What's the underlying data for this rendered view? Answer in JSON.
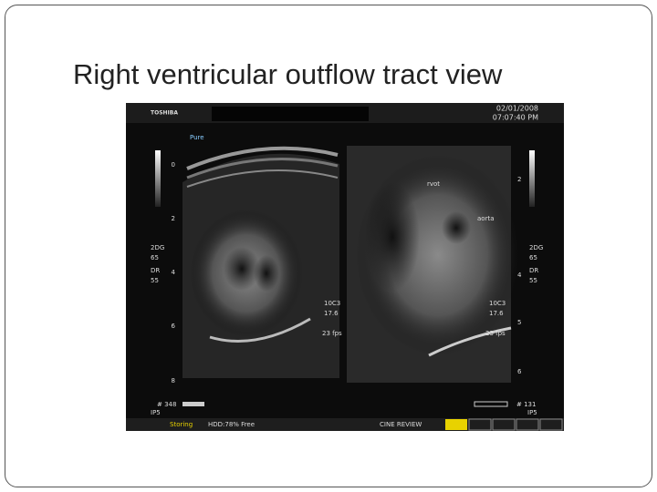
{
  "title": "Right ventricular outflow tract view",
  "ultrasound": {
    "header": {
      "brand": "TOSHIBA",
      "date": "02/01/2008",
      "time": "07:07:40 PM"
    },
    "left_panel": {
      "preset": "Pure",
      "depth_labels": [
        "0",
        "2",
        "4",
        "6",
        "8"
      ],
      "settings": [
        "2DG",
        "65",
        "DR",
        "55"
      ],
      "probe": [
        "10C3",
        "17.6"
      ],
      "frame_rate": "23 fps",
      "frame_count": "# 348",
      "mode": "IP5"
    },
    "right_panel": {
      "annotations": [
        "rvot",
        "aorta"
      ],
      "depth_labels": [
        "2",
        "4",
        "5",
        "6"
      ],
      "settings": [
        "2DG",
        "65",
        "DR",
        "55"
      ],
      "probe": [
        "10C3",
        "17.6"
      ],
      "frame_rate": "23 fps",
      "frame_count": "# 131",
      "mode": "IP5"
    },
    "footer": {
      "status": "Storing",
      "disk": "HDD:78% Free",
      "mode": "CINE REVIEW"
    }
  }
}
